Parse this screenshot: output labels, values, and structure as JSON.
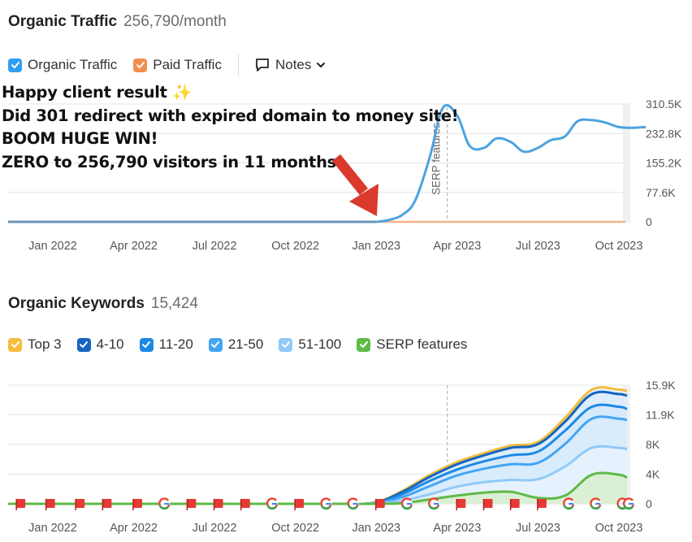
{
  "traffic": {
    "title": "Organic Traffic",
    "value": "256,790/month",
    "legend": [
      {
        "label": "Organic Traffic",
        "color": "#2f9ff0"
      },
      {
        "label": "Paid Traffic",
        "color": "#f08d4f"
      }
    ],
    "notes_label": "Notes",
    "annotation": [
      "Happy client result ✨",
      "Did 301 redirect with expired domain to money site!",
      "BOOM HUGE WIN!",
      "ZERO to 256,790 visitors in 11 months"
    ],
    "serp_marker_label": "SERP features"
  },
  "keywords": {
    "title": "Organic Keywords",
    "value": "15,424",
    "legend": [
      {
        "label": "Top 3",
        "color": "#f5bd3c"
      },
      {
        "label": "4-10",
        "color": "#1565c0"
      },
      {
        "label": "11-20",
        "color": "#1e88e5"
      },
      {
        "label": "21-50",
        "color": "#42a5f5"
      },
      {
        "label": "51-100",
        "color": "#90caf9"
      },
      {
        "label": "SERP features",
        "color": "#5fba46"
      }
    ]
  },
  "chart_data": [
    {
      "type": "line",
      "x_ticks": [
        "Jan 2022",
        "Apr 2022",
        "Jul 2022",
        "Oct 2022",
        "Jan 2023",
        "Apr 2023",
        "Jul 2023",
        "Oct 2023"
      ],
      "y_ticks": [
        "310.5K",
        "232.8K",
        "155.2K",
        "77.6K",
        "0"
      ],
      "ylim": [
        0,
        310500
      ],
      "xlabel": "",
      "ylabel": "",
      "x": [
        "2021-11",
        "2021-12",
        "2022-01",
        "2022-02",
        "2022-03",
        "2022-04",
        "2022-05",
        "2022-06",
        "2022-07",
        "2022-08",
        "2022-09",
        "2022-10",
        "2022-11",
        "2022-12",
        "2023-01",
        "2023-01-15",
        "2023-02",
        "2023-02-15",
        "2023-03",
        "2023-03-15",
        "2023-04",
        "2023-04-15",
        "2023-05",
        "2023-05-15",
        "2023-06",
        "2023-06-15",
        "2023-07",
        "2023-07-15",
        "2023-08",
        "2023-08-15",
        "2023-09",
        "2023-09-15",
        "2023-10",
        "2023-10-15",
        "2023-11"
      ],
      "series": [
        {
          "name": "Organic Traffic",
          "color": "#4da3e0",
          "values": [
            0,
            0,
            0,
            0,
            0,
            0,
            0,
            0,
            0,
            0,
            0,
            0,
            0,
            0,
            0,
            5000,
            20000,
            60000,
            175000,
            300000,
            280000,
            200000,
            195000,
            220000,
            210000,
            185000,
            195000,
            215000,
            225000,
            265000,
            268000,
            262000,
            250000,
            248000,
            250000
          ]
        },
        {
          "name": "Paid Traffic",
          "color": "#f08d4f",
          "values": [
            0,
            0,
            0,
            0,
            0,
            0,
            0,
            0,
            0,
            0,
            0,
            0,
            0,
            0,
            0,
            0,
            0,
            0,
            0,
            0,
            0,
            0,
            0,
            0,
            0,
            0,
            0,
            0,
            0,
            0,
            0,
            0,
            0,
            0,
            0
          ]
        }
      ],
      "grid": true,
      "markers": [
        {
          "x": "2023-03-20",
          "label": "SERP features"
        }
      ]
    },
    {
      "type": "area",
      "x_ticks": [
        "Jan 2022",
        "Apr 2022",
        "Jul 2022",
        "Oct 2022",
        "Jan 2023",
        "Apr 2023",
        "Jul 2023",
        "Oct 2023"
      ],
      "y_ticks": [
        "15.9K",
        "11.9K",
        "8K",
        "4K",
        "0"
      ],
      "ylim": [
        0,
        15900
      ],
      "xlabel": "",
      "ylabel": "",
      "x": [
        "2022-12",
        "2023-01",
        "2023-02",
        "2023-03",
        "2023-04",
        "2023-05",
        "2023-06",
        "2023-07",
        "2023-08",
        "2023-09",
        "2023-10",
        "2023-11"
      ],
      "series": [
        {
          "name": "Top 3",
          "color": "#f5bd3c",
          "values": [
            0,
            200,
            1800,
            3900,
            5600,
            6800,
            7800,
            8300,
            11500,
            15300,
            15300,
            15100
          ]
        },
        {
          "name": "4-10",
          "color": "#1565c0",
          "values": [
            0,
            180,
            1650,
            3650,
            5300,
            6500,
            7500,
            8000,
            11000,
            14700,
            14700,
            14500
          ]
        },
        {
          "name": "11-20",
          "color": "#1e88e5",
          "values": [
            0,
            140,
            1350,
            3100,
            4600,
            5700,
            6500,
            7000,
            9800,
            13000,
            13000,
            12700
          ]
        },
        {
          "name": "21-50",
          "color": "#42a5f5",
          "values": [
            0,
            100,
            950,
            2400,
            3800,
            4700,
            5300,
            5500,
            8000,
            11400,
            11400,
            11200
          ]
        },
        {
          "name": "51-100",
          "color": "#90caf9",
          "values": [
            0,
            50,
            450,
            1300,
            2300,
            2900,
            3200,
            3300,
            5000,
            7500,
            7500,
            7300
          ]
        },
        {
          "name": "SERP features",
          "color": "#5fba46",
          "values": [
            0,
            0,
            100,
            600,
            1100,
            1500,
            1600,
            800,
            1100,
            3900,
            3900,
            3500
          ]
        }
      ],
      "grid": true,
      "markers": [
        {
          "x": "2023-03-20"
        }
      ]
    }
  ]
}
